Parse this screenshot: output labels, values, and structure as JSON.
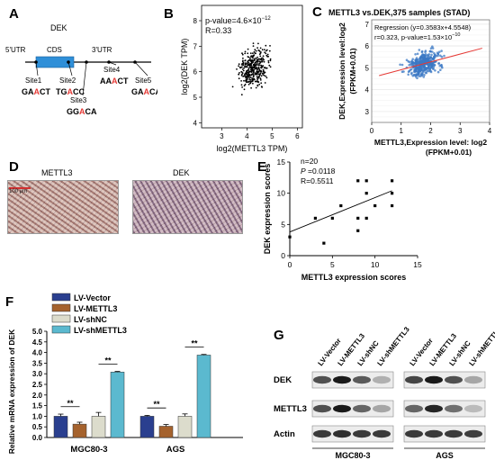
{
  "panels": {
    "A": "A",
    "B": "B",
    "C": "C",
    "D": "D",
    "E": "E",
    "F": "F",
    "G": "G"
  },
  "panelA": {
    "gene": "DEK",
    "utr5": "5'UTR",
    "cds": "CDS",
    "utr3": "3'UTR",
    "sites": [
      {
        "name": "Site1",
        "pre": "GA",
        "hl": "A",
        "post": "CT"
      },
      {
        "name": "Site2",
        "pre": "TG",
        "hl": "A",
        "post": "CC"
      },
      {
        "name": "Site3",
        "pre": "GG",
        "hl": "A",
        "post": "CA"
      },
      {
        "name": "Site4",
        "pre": "AA",
        "hl": "A",
        "post": "CT"
      },
      {
        "name": "Site5",
        "pre": "GA",
        "hl": "A",
        "post": "CA"
      }
    ],
    "highlight_color": "#e53935"
  },
  "panelB": {
    "pvalue_label": "p-value=4.6×10",
    "pvalue_exp": "−12",
    "r_label": "R=0.33",
    "xlabel": "log2(METTL3 TPM)",
    "ylabel": "log2(DEK TPM)"
  },
  "panelC": {
    "title": "METTL3 vs.DEK,375 samples (STAD)",
    "regression": "Regression (y=0.3583x+4.5548)",
    "stats": "r=0.323, p-value=1.53×10",
    "stats_exp": "−10",
    "xlabel1": "METTL3,Expression level: log2",
    "xlabel2": "(FPKM+0.01)",
    "ylabel1": "DEK,Expression level:log2",
    "ylabel2": "(FPKM+0.01)",
    "point_color": "#3b78c4",
    "line_color": "#e53935"
  },
  "panelD": {
    "label1": "METTL3",
    "label2": "DEK",
    "scale": "100 μm"
  },
  "panelE": {
    "n": "n=20",
    "p_italic": "P",
    "p_value": " =0.0118",
    "r": "R=0.5511",
    "xlabel": "METTL3 expression scores",
    "ylabel": "DEK expression scores"
  },
  "panelF": {
    "legend": [
      "LV-Vector",
      "LV-METTL3",
      "LV-shNC",
      "LV-shMETTL3"
    ],
    "colors": [
      "#2a3f8f",
      "#a5622d",
      "#dcdccc",
      "#5bb9cf"
    ],
    "ylabel": "Relative mRNA expression of DEK",
    "sig": "**"
  },
  "panelG": {
    "lanes": [
      "LV-Vector",
      "LV-METTL3",
      "LV-shNC",
      "LV-shMETTL3"
    ],
    "proteins": [
      "DEK",
      "METTL3",
      "Actin"
    ],
    "groups": [
      "MGC80-3",
      "AGS"
    ]
  },
  "chart_data": [
    {
      "type": "scatter",
      "id": "B",
      "xlabel": "log2(METTL3 TPM)",
      "ylabel": "log2(DEK TPM)",
      "xlim": [
        2.2,
        6.2
      ],
      "ylim": [
        3.8,
        8.6
      ],
      "xticks": [
        3,
        4,
        5,
        6
      ],
      "yticks": [
        4,
        5,
        6,
        7,
        8
      ]
    },
    {
      "type": "scatter",
      "id": "C",
      "xlim": [
        0,
        4
      ],
      "ylim": [
        2.5,
        7.2
      ],
      "xticks": [
        0,
        1,
        2,
        3,
        4
      ],
      "yticks": [
        3,
        4,
        5,
        6,
        7
      ],
      "regression": {
        "slope": 0.3583,
        "intercept": 4.5548
      }
    },
    {
      "type": "scatter",
      "id": "E",
      "xlim": [
        0,
        15
      ],
      "ylim": [
        0,
        15
      ],
      "xticks": [
        0,
        5,
        10,
        15
      ],
      "yticks": [
        0,
        5,
        10,
        15
      ],
      "x": [
        0,
        3,
        4,
        5,
        6,
        8,
        8,
        8,
        9,
        9,
        9,
        10,
        12,
        12,
        12
      ],
      "y": [
        3,
        6,
        2,
        6,
        8,
        4,
        6,
        12,
        6,
        10,
        12,
        8,
        8,
        10,
        12
      ],
      "fit": {
        "x": [
          0,
          12
        ],
        "y": [
          3.8,
          10.4
        ]
      }
    },
    {
      "type": "bar",
      "id": "F",
      "categories": [
        "MGC80-3",
        "AGS"
      ],
      "series": [
        {
          "name": "LV-Vector",
          "values": [
            1.0,
            1.0
          ],
          "err": [
            0.1,
            0.04
          ]
        },
        {
          "name": "LV-METTL3",
          "values": [
            0.63,
            0.53
          ],
          "err": [
            0.09,
            0.08
          ]
        },
        {
          "name": "LV-shNC",
          "values": [
            1.0,
            1.0
          ],
          "err": [
            0.18,
            0.11
          ]
        },
        {
          "name": "LV-shMETTL3",
          "values": [
            3.08,
            3.88
          ],
          "err": [
            0.03,
            0.03
          ]
        }
      ],
      "ylim": [
        0,
        5
      ],
      "yticks": [
        0.0,
        0.5,
        1.0,
        1.5,
        2.0,
        2.5,
        3.0,
        3.5,
        4.0,
        4.5,
        5.0
      ]
    }
  ]
}
